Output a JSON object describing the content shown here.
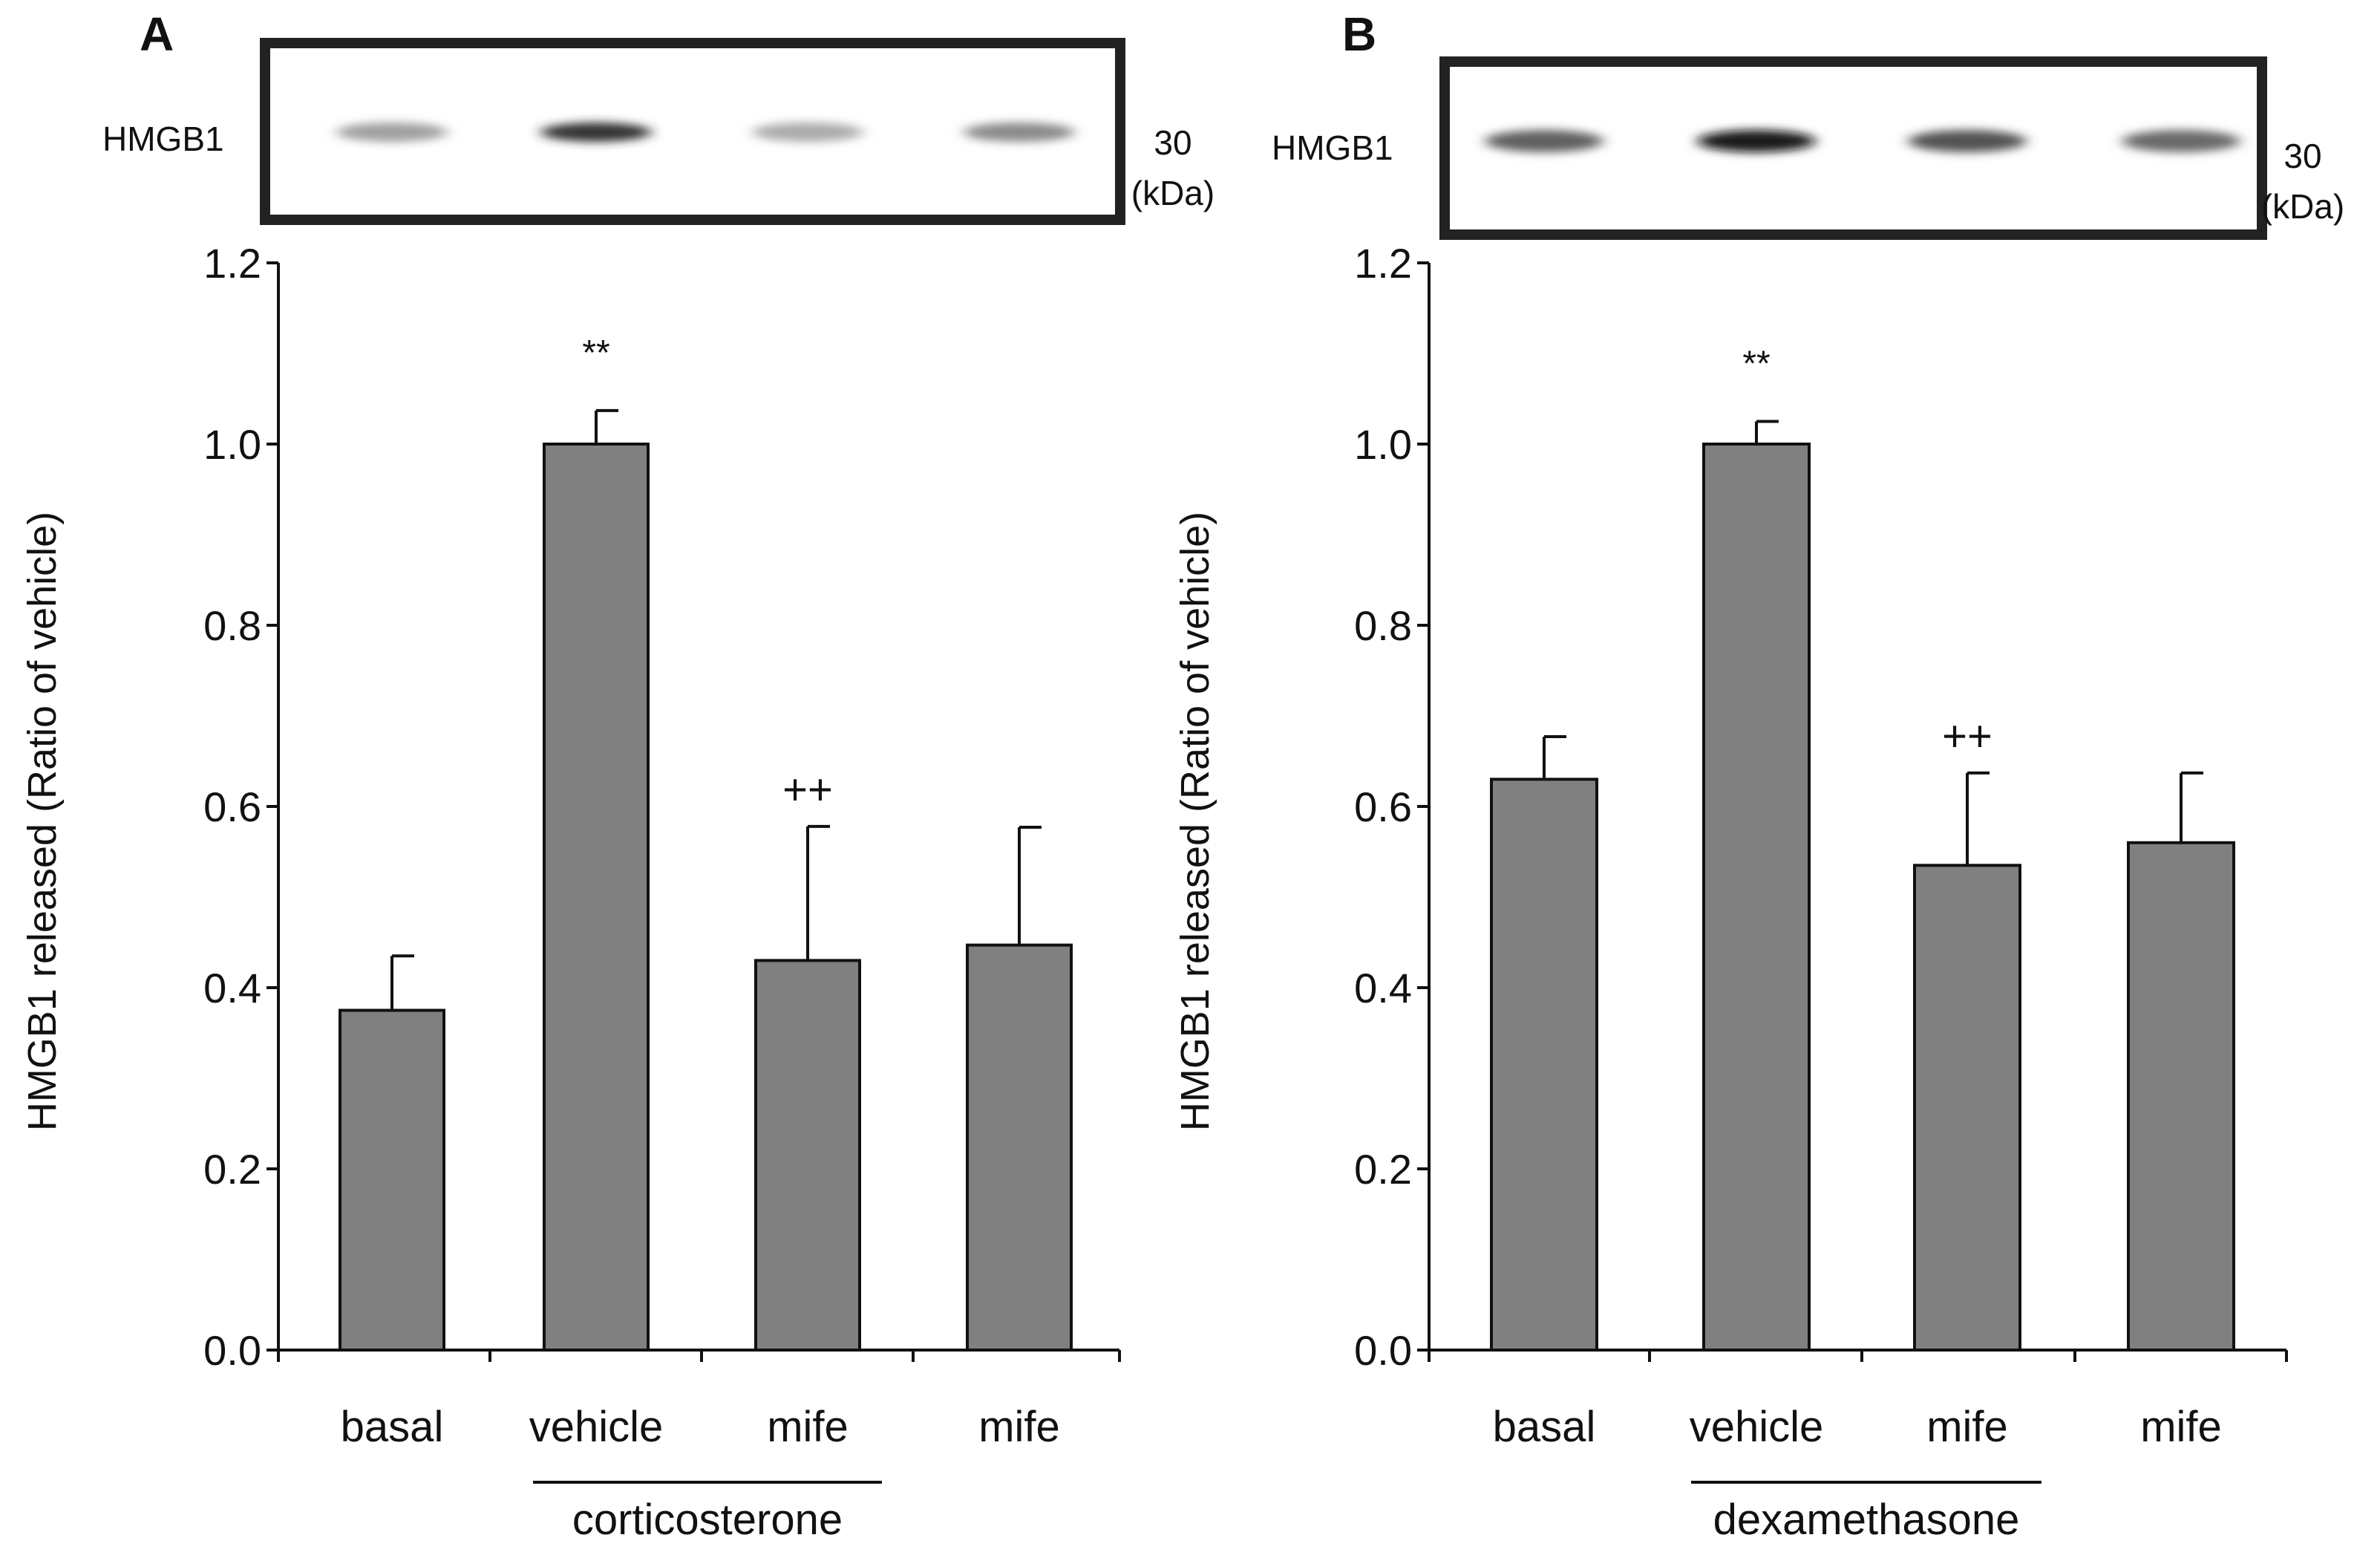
{
  "chart_data": [
    {
      "type": "bar",
      "panel_label": "A",
      "categories": [
        "basal",
        "vehicle",
        "mife",
        "mife"
      ],
      "values": [
        0.375,
        1.0,
        0.43,
        0.447
      ],
      "error_bars": [
        0.06,
        0.037,
        0.148,
        0.13
      ],
      "significance": [
        "",
        "**",
        "++",
        ""
      ],
      "group_label": "corticosterone",
      "ylabel": "HMGB1 released (Ratio of vehicle)",
      "ylim": [
        0,
        1.2
      ],
      "yticks": [
        "0.0",
        "0.2",
        "0.4",
        "0.6",
        "0.8",
        "1.0",
        "1.2"
      ],
      "bar_color": "#808080",
      "blot": {
        "label": "HMGB1",
        "marker_value": "30",
        "marker_unit": "(kDa)",
        "band_intensities": [
          0.35,
          0.85,
          0.3,
          0.45
        ]
      }
    },
    {
      "type": "bar",
      "panel_label": "B",
      "categories": [
        "basal",
        "vehicle",
        "mife",
        "mife"
      ],
      "values": [
        0.63,
        1.0,
        0.535,
        0.56
      ],
      "error_bars": [
        0.047,
        0.025,
        0.102,
        0.077
      ],
      "significance": [
        "",
        "**",
        "++",
        ""
      ],
      "group_label": "dexamethasone",
      "ylabel": "HMGB1 released (Ratio of vehicle)",
      "ylim": [
        0,
        1.2
      ],
      "yticks": [
        "0.0",
        "0.2",
        "0.4",
        "0.6",
        "0.8",
        "1.0",
        "1.2"
      ],
      "bar_color": "#808080",
      "blot": {
        "label": "HMGB1",
        "marker_value": "30",
        "marker_unit": "(kDa)",
        "band_intensities": [
          0.65,
          0.95,
          0.7,
          0.6
        ]
      }
    }
  ]
}
